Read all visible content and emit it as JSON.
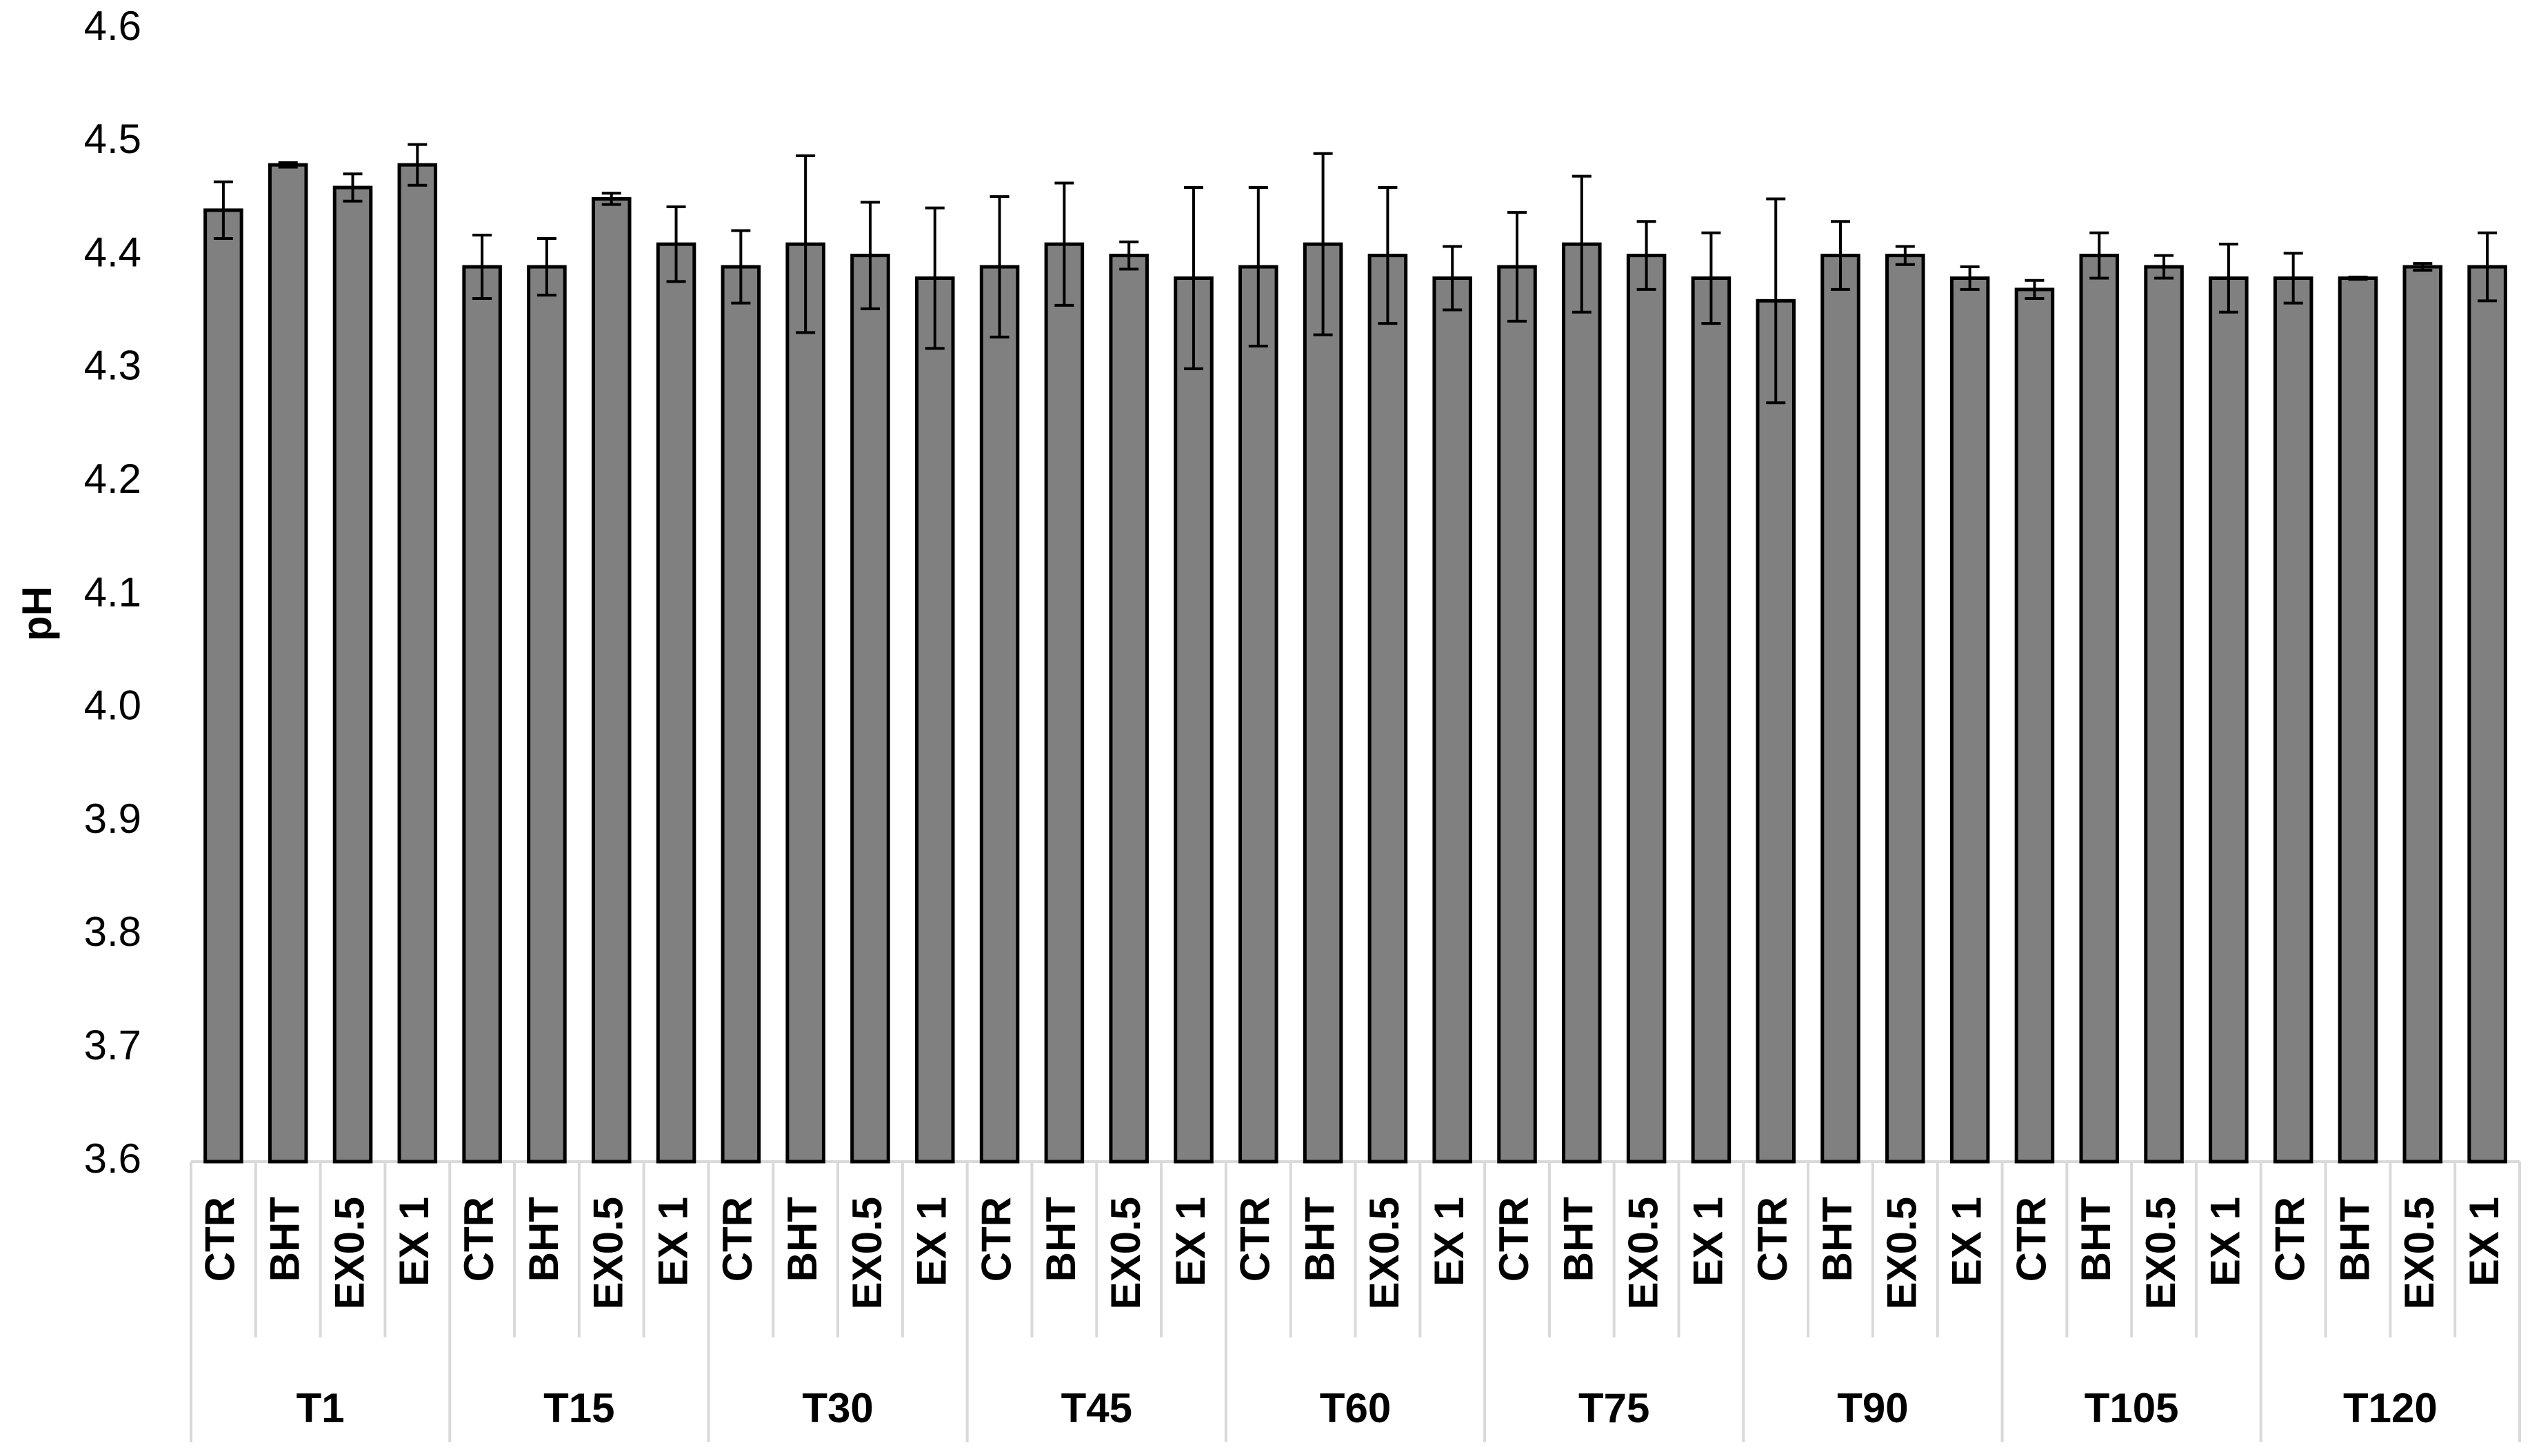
{
  "chart_data": {
    "type": "bar",
    "y_label": "pH",
    "groups": [
      "T1",
      "T15",
      "T30",
      "T45",
      "T60",
      "T75",
      "T90",
      "T105",
      "T120"
    ],
    "categories": [
      "CTR",
      "BHT",
      "EX0.5",
      "EX 1",
      "CTR",
      "BHT",
      "EX0.5",
      "EX 1",
      "CTR",
      "BHT",
      "EX0.5",
      "EX 1",
      "CTR",
      "BHT",
      "EX0.5",
      "EX 1",
      "CTR",
      "BHT",
      "EX0.5",
      "EX 1",
      "CTR",
      "BHT",
      "EX0.5",
      "EX 1",
      "CTR",
      "BHT",
      "EX0.5",
      "EX 1",
      "CTR",
      "BHT",
      "EX0.5",
      "EX 1",
      "CTR",
      "BHT",
      "EX0.5",
      "EX 1"
    ],
    "values": [
      4.44,
      4.48,
      4.46,
      4.48,
      4.39,
      4.39,
      4.45,
      4.41,
      4.39,
      4.41,
      4.4,
      4.38,
      4.39,
      4.41,
      4.4,
      4.38,
      4.39,
      4.41,
      4.4,
      4.38,
      4.39,
      4.41,
      4.4,
      4.38,
      4.36,
      4.4,
      4.4,
      4.38,
      4.37,
      4.4,
      4.39,
      4.38,
      4.38,
      4.38,
      4.39,
      4.39
    ],
    "errors": [
      0.025,
      0.002,
      0.012,
      0.018,
      0.028,
      0.025,
      0.005,
      0.033,
      0.032,
      0.078,
      0.047,
      0.062,
      0.062,
      0.054,
      0.012,
      0.08,
      0.07,
      0.08,
      0.06,
      0.028,
      0.048,
      0.06,
      0.03,
      0.04,
      0.09,
      0.03,
      0.008,
      0.01,
      0.008,
      0.02,
      0.01,
      0.03,
      0.022,
      0.001,
      0.003,
      0.03
    ],
    "color": "#808080",
    "ylim": [
      3.6,
      4.6
    ],
    "yticks": [
      3.6,
      3.7,
      3.8,
      3.9,
      {
        "value": 4,
        "label": "4.0"
      },
      4.1,
      4.2,
      4.3,
      4.4,
      4.5,
      4.6
    ],
    "grid": false
  }
}
